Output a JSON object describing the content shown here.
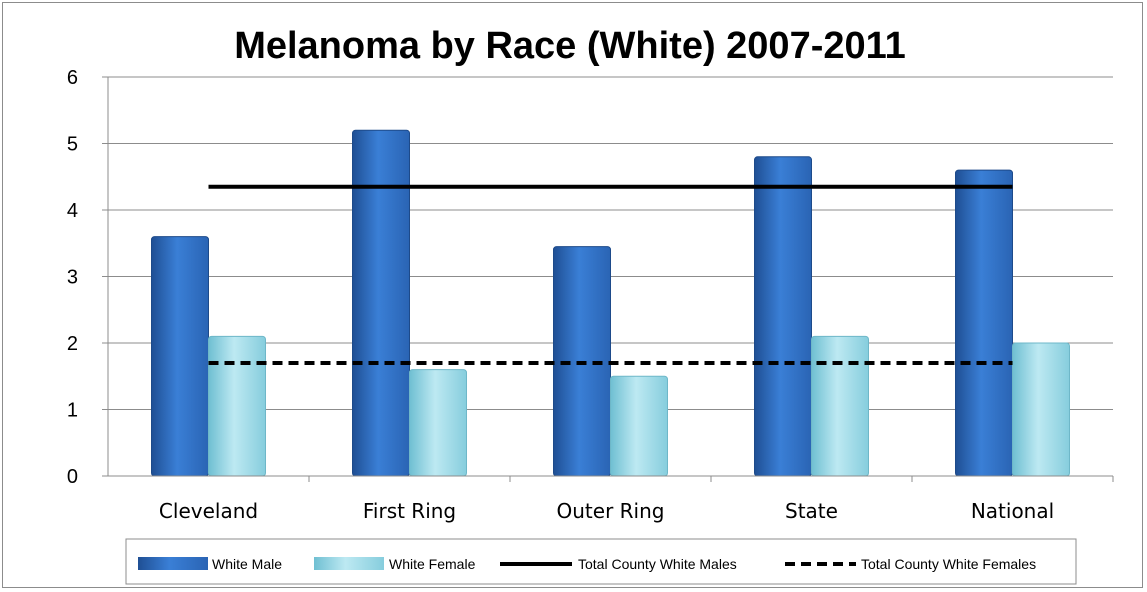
{
  "chart_data": {
    "type": "bar",
    "title": "Melanoma by Race (White) 2007-2011",
    "xlabel": "",
    "ylabel": "",
    "ylim": [
      0,
      6
    ],
    "yticks": [
      0,
      1,
      2,
      3,
      4,
      5,
      6
    ],
    "grid": true,
    "legend_position": "bottom",
    "categories": [
      "Cleveland",
      "First Ring",
      "Outer Ring",
      "State",
      "National"
    ],
    "series": [
      {
        "name": "White Male",
        "values": [
          3.6,
          5.2,
          3.45,
          4.8,
          4.6
        ],
        "color": "#2e6fc4"
      },
      {
        "name": "White Female",
        "values": [
          2.1,
          1.6,
          1.5,
          2.1,
          2.0
        ],
        "color": "#8fd4e4"
      }
    ],
    "reference_lines": [
      {
        "name": "Total County White Males",
        "value": 4.35,
        "style": "solid",
        "color": "#000000"
      },
      {
        "name": "Total County White Females",
        "value": 1.7,
        "style": "dashed",
        "color": "#000000"
      }
    ]
  }
}
